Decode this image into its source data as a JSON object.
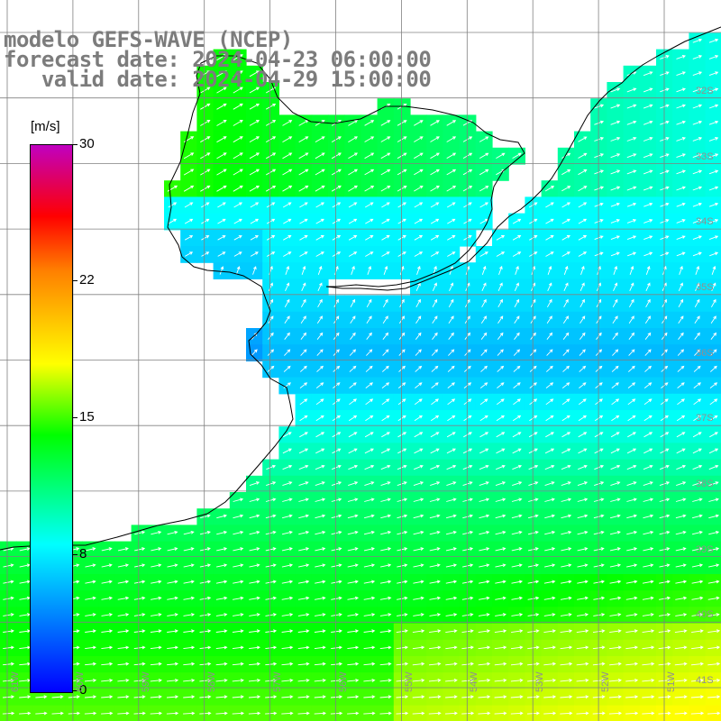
{
  "header": {
    "title": "modelo GEFS-WAVE (NCEP)",
    "forecast": "forecast date: 2024-04-23 06:00:00",
    "valid": "   valid date: 2024-04-29 15:00:00"
  },
  "colorbar": {
    "unit": "[m/s]",
    "min": 0,
    "max": 30,
    "ticks": [
      "30",
      "22",
      "15",
      "8",
      "0"
    ],
    "colors": [
      "#0000ff",
      "#00ffff",
      "#00ff00",
      "#ffff00",
      "#ff8000",
      "#ff0000",
      "#c000c0"
    ]
  },
  "grid": {
    "lon_labels": [
      "61W",
      "60W",
      "59W",
      "58W",
      "57W",
      "56W",
      "55W",
      "54W",
      "53W",
      "52W",
      "51W"
    ],
    "lat_labels": [
      "32S",
      "33S",
      "34S",
      "35S",
      "36S",
      "37S",
      "38S",
      "39S",
      "40S",
      "41S"
    ]
  },
  "field": {
    "variable": "wind speed",
    "unit": "m/s",
    "extent": {
      "lon_min": -61.3,
      "lon_max": -50.3,
      "lat_min": -41.3,
      "lat_max": -30.3
    }
  },
  "colors": {
    "land": "#ffffff",
    "grid_line": "#808080",
    "coast": "#000000",
    "arrows": "#ffffff",
    "label_grey": "#7c7c7c"
  }
}
